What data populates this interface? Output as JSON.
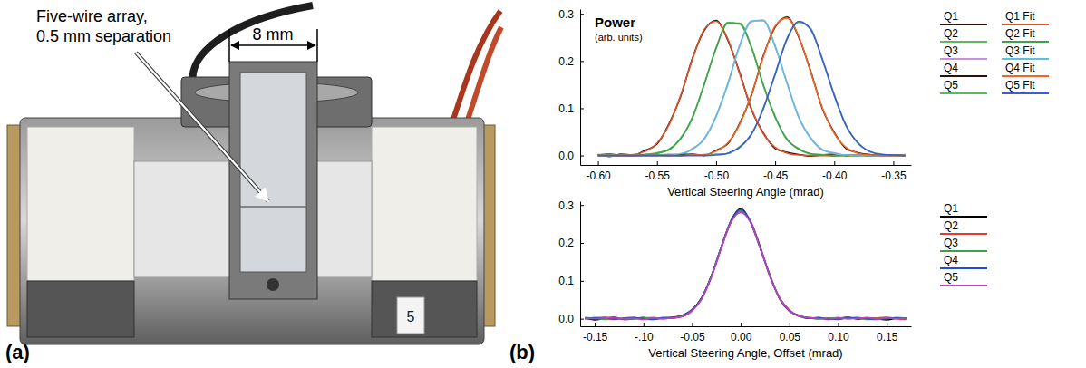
{
  "figure": {
    "panel_labels": [
      "(a)",
      "(b)"
    ]
  },
  "photo": {
    "callout": [
      "Five-wire array,",
      "0.5 mm separation"
    ],
    "dimension": "8 mm",
    "tag": "5"
  },
  "chart_data": [
    {
      "type": "line",
      "annotation": [
        "Power",
        "(arb. units)"
      ],
      "xlabel": "Vertical Steering Angle (mrad)",
      "legend": "right",
      "xlim": [
        -0.615,
        -0.335
      ],
      "xticks": [
        {
          "value": -0.6,
          "label": "-0.60"
        },
        -0.55,
        {
          "value": -0.5,
          "label": "-0.50"
        },
        -0.45,
        {
          "value": -0.4,
          "label": "-0.40"
        },
        -0.35
      ],
      "ylim": [
        -0.02,
        0.31
      ],
      "yticks": [
        {
          "value": 0,
          "label": "0.0"
        },
        0.1,
        0.2,
        0.3
      ],
      "x": [
        -0.6,
        -0.59,
        -0.58,
        -0.57,
        -0.56,
        -0.55,
        -0.54,
        -0.53,
        -0.52,
        -0.51,
        -0.5,
        -0.49,
        -0.48,
        -0.47,
        -0.46,
        -0.45,
        -0.44,
        -0.43,
        -0.42,
        -0.41,
        -0.4,
        -0.39,
        -0.38,
        -0.37,
        -0.36,
        -0.35,
        -0.34
      ],
      "series": [
        {
          "name": "Q1",
          "color": "#2a140a",
          "values": [
            0.002,
            -0.002,
            0.003,
            0.001,
            0.011,
            0.024,
            0.066,
            0.125,
            0.206,
            0.265,
            0.286,
            0.244,
            0.175,
            0.097,
            0.048,
            0.015,
            0.007,
            0.002,
            -0.001,
            0.001,
            0.003,
            0.0,
            0.002,
            -0.001,
            0.001,
            0.0,
            0.002
          ]
        },
        {
          "name": "Q2",
          "color": "#5cb85c",
          "values": [
            0.001,
            -0.001,
            0.002,
            0.0,
            0.002,
            0.006,
            0.011,
            0.037,
            0.079,
            0.152,
            0.226,
            0.282,
            0.278,
            0.23,
            0.148,
            0.083,
            0.033,
            0.015,
            0.003,
            0.002,
            -0.001,
            0.001,
            0.0,
            0.002,
            -0.001,
            0.001,
            0.0
          ]
        },
        {
          "name": "Q3",
          "color": "#c890d8",
          "values": [
            0.002,
            0.0,
            -0.001,
            0.001,
            0.002,
            0.0,
            0.003,
            0.002,
            0.015,
            0.034,
            0.084,
            0.151,
            0.234,
            0.283,
            0.287,
            0.23,
            0.155,
            0.08,
            0.038,
            0.011,
            0.006,
            0.0,
            0.002,
            -0.001,
            0.001,
            0.0,
            0.001
          ]
        },
        {
          "name": "Q4",
          "color": "#2a140a",
          "values": [
            0.001,
            0.003,
            0.0,
            -0.001,
            0.002,
            0.001,
            0.0,
            0.002,
            0.003,
            0.0,
            0.011,
            0.025,
            0.068,
            0.128,
            0.211,
            0.272,
            0.293,
            0.25,
            0.179,
            0.099,
            0.049,
            0.015,
            0.006,
            0.002,
            0.0,
            0.001,
            -0.001
          ]
        },
        {
          "name": "Q5",
          "color": "#5cb85c",
          "values": [
            0.0,
            0.002,
            -0.001,
            0.001,
            0.0,
            0.002,
            0.001,
            -0.001,
            0.002,
            0.001,
            0.003,
            0.004,
            0.019,
            0.044,
            0.101,
            0.171,
            0.248,
            0.282,
            0.269,
            0.202,
            0.129,
            0.062,
            0.028,
            0.008,
            0.003,
            0.0,
            0.001
          ]
        },
        {
          "name": "Q1 Fit",
          "color": "#e0502a",
          "values": [
            0,
            0,
            0.001,
            0.002,
            0.009,
            0.026,
            0.064,
            0.127,
            0.204,
            0.267,
            0.284,
            0.246,
            0.173,
            0.099,
            0.046,
            0.017,
            0.005,
            0.001,
            0,
            0,
            0,
            0,
            0,
            0,
            0,
            0,
            0
          ]
        },
        {
          "name": "Q2 Fit",
          "color": "#3fa34d",
          "values": [
            0,
            0,
            0,
            0,
            0.001,
            0.004,
            0.013,
            0.035,
            0.081,
            0.15,
            0.228,
            0.28,
            0.28,
            0.228,
            0.15,
            0.081,
            0.035,
            0.013,
            0.004,
            0.001,
            0,
            0,
            0,
            0,
            0,
            0,
            0
          ]
        },
        {
          "name": "Q3 Fit",
          "color": "#5bc0de",
          "values": [
            0,
            0,
            0,
            0,
            0,
            0,
            0.001,
            0.004,
            0.013,
            0.036,
            0.082,
            0.153,
            0.232,
            0.285,
            0.285,
            0.232,
            0.153,
            0.082,
            0.036,
            0.013,
            0.004,
            0.001,
            0,
            0,
            0,
            0,
            0
          ]
        },
        {
          "name": "Q4 Fit",
          "color": "#f26522",
          "values": [
            0,
            0,
            0,
            0,
            0,
            0,
            0,
            0,
            0.001,
            0.002,
            0.009,
            0.027,
            0.066,
            0.13,
            0.209,
            0.274,
            0.291,
            0.252,
            0.177,
            0.101,
            0.047,
            0.017,
            0.005,
            0.001,
            0,
            0,
            0
          ]
        },
        {
          "name": "Q5 Fit",
          "color": "#3b5bdb",
          "values": [
            0,
            0,
            0,
            0,
            0,
            0,
            0,
            0,
            0,
            0,
            0.001,
            0.005,
            0.017,
            0.046,
            0.099,
            0.173,
            0.246,
            0.284,
            0.267,
            0.204,
            0.127,
            0.064,
            0.026,
            0.009,
            0.002,
            0.001,
            0
          ]
        }
      ]
    },
    {
      "type": "line",
      "xlabel": "Vertical Steering Angle, Offset (mrad)",
      "legend": "right",
      "xlim": [
        -0.165,
        0.175
      ],
      "xticks": [
        -0.15,
        {
          "value": -0.1,
          "label": "-.10"
        },
        -0.05,
        {
          "value": 0,
          "label": "0.00"
        },
        0.05,
        {
          "value": 0.1,
          "label": "0.10"
        },
        0.15
      ],
      "ylim": [
        -0.02,
        0.31
      ],
      "yticks": [
        {
          "value": 0,
          "label": "0.0"
        },
        0.1,
        0.2,
        0.3
      ],
      "x": [
        -0.16,
        -0.15,
        -0.14,
        -0.13,
        -0.12,
        -0.11,
        -0.1,
        -0.09,
        -0.08,
        -0.07,
        -0.06,
        -0.05,
        -0.04,
        -0.03,
        -0.02,
        -0.01,
        0,
        0.01,
        0.02,
        0.03,
        0.04,
        0.05,
        0.06,
        0.07,
        0.08,
        0.09,
        0.1,
        0.11,
        0.12,
        0.13,
        0.14,
        0.15,
        0.16,
        0.17
      ],
      "series": [
        {
          "name": "Q1",
          "color": "#000000",
          "values": [
            0.002,
            -0.003,
            0.001,
            0.004,
            -0.002,
            0.0,
            0.003,
            -0.001,
            0.002,
            0.004,
            0.009,
            0.024,
            0.056,
            0.115,
            0.19,
            0.259,
            0.29,
            0.255,
            0.186,
            0.115,
            0.052,
            0.02,
            0.009,
            0.001,
            0.003,
            -0.002,
            0.001,
            0.004,
            -0.001,
            0.002,
            0.0,
            -0.003,
            0.001,
            0.002
          ]
        },
        {
          "name": "Q2",
          "color": "#e53935",
          "values": [
            -0.001,
            0.003,
            0.0,
            -0.002,
            0.002,
            0.004,
            -0.001,
            0.001,
            0.0,
            0.003,
            0.006,
            0.021,
            0.053,
            0.111,
            0.186,
            0.255,
            0.283,
            0.258,
            0.19,
            0.111,
            0.055,
            0.023,
            0.006,
            0.003,
            0.0,
            0.002,
            -0.002,
            0.003,
            0.001,
            -0.001,
            0.002,
            0.004,
            0.0,
            -0.002
          ]
        },
        {
          "name": "Q3",
          "color": "#43a047",
          "values": [
            0.003,
            0.001,
            -0.002,
            0.002,
            0.0,
            -0.001,
            0.002,
            0.003,
            0.001,
            0.001,
            0.008,
            0.023,
            0.052,
            0.114,
            0.189,
            0.256,
            0.285,
            0.256,
            0.187,
            0.114,
            0.053,
            0.021,
            0.008,
            0.002,
            -0.001,
            0.001,
            0.003,
            0.0,
            0.002,
            -0.002,
            0.001,
            0.0,
            0.003,
            0.001
          ]
        },
        {
          "name": "Q4",
          "color": "#1e4fd8",
          "values": [
            0.0,
            0.002,
            0.004,
            -0.001,
            0.001,
            0.002,
            0.0,
            -0.002,
            0.003,
            0.002,
            0.007,
            0.022,
            0.055,
            0.113,
            0.188,
            0.258,
            0.288,
            0.257,
            0.189,
            0.112,
            0.054,
            0.022,
            0.007,
            0.001,
            0.002,
            0.0,
            -0.001,
            0.002,
            0.003,
            0.0,
            -0.002,
            0.001,
            0.002,
            0.0
          ]
        },
        {
          "name": "Q5",
          "color": "#c040c0",
          "values": [
            0.001,
            0.0,
            0.002,
            0.003,
            -0.001,
            0.001,
            -0.002,
            0.002,
            0.0,
            0.002,
            0.006,
            0.021,
            0.053,
            0.112,
            0.187,
            0.255,
            0.28,
            0.254,
            0.187,
            0.112,
            0.054,
            0.021,
            0.007,
            0.003,
            0.001,
            -0.001,
            0.002,
            0.0,
            0.001,
            0.003,
            -0.001,
            0.002,
            0.0,
            0.001
          ]
        }
      ]
    }
  ]
}
